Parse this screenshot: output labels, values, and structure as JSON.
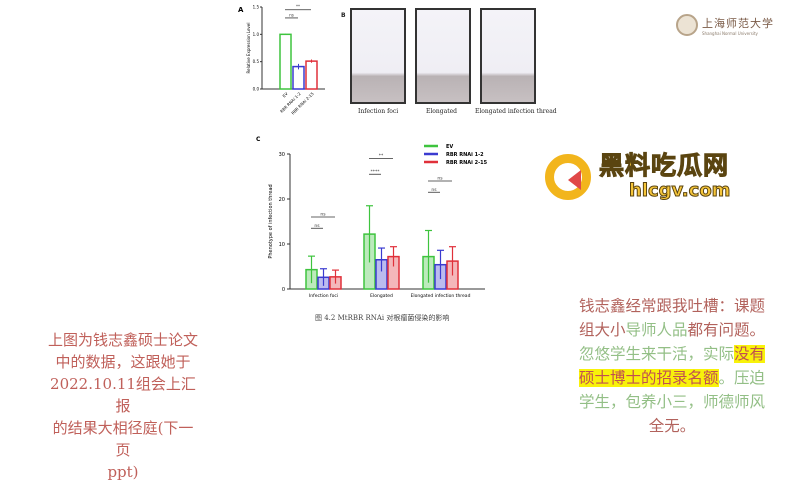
{
  "logo": {
    "name_cn": "上海师范大学",
    "name_en": "Shanghai Normal University"
  },
  "watermark": {
    "title": "黑料吃瓜网",
    "url": "hlcgv.com"
  },
  "panel_b": {
    "label": "B",
    "captions": [
      "Infection foci",
      "Elongated",
      "Elongated infection thread"
    ]
  },
  "caption": "图 4.2 MtRBR RNAi 对根瘤菌侵染的影响",
  "left_text": [
    "上图为钱志鑫硕士论文",
    "中的数据，这跟她于",
    "2022.10.11组会上汇报",
    "的结果大相径庭(下一页",
    "ppt)"
  ],
  "right_text": {
    "l1": "钱志鑫经常跟我吐槽：课题",
    "l2a": "组大小",
    "l2b": "导师人品",
    "l2c": "都有问题。",
    "l3a": "忽悠学生来干活，实际",
    "l3b": "没有",
    "l4a": "硕士博士的招录名额",
    "l4b": "。压迫",
    "l5": "学生，包养小三，师德师风",
    "l6": "全无。"
  },
  "chart_data": [
    {
      "panel": "A",
      "type": "bar",
      "ylabel": "Relative Expression Level",
      "ylim": [
        0,
        1.5
      ],
      "yticks": [
        "0.0",
        "0.5",
        "1.0",
        "1.5"
      ],
      "categories": [
        "EV",
        "RBR RNAi 1-2",
        "RBR RNAi 2-15"
      ],
      "values": [
        1.0,
        0.41,
        0.51
      ],
      "errors": [
        0.01,
        0.05,
        0.03
      ],
      "colors": [
        "#3ec43e",
        "#3b3bd0",
        "#e0303a"
      ],
      "significance": [
        {
          "label": "ns",
          "from": 0,
          "to": 1,
          "y": 1.3
        },
        {
          "label": "**",
          "from": 0,
          "to": 2,
          "y": 1.45
        }
      ]
    },
    {
      "panel": "C",
      "type": "bar",
      "ylabel": "Phenotype of infection thread",
      "ylim": [
        0,
        30
      ],
      "yticks": [
        "0",
        "10",
        "20",
        "30"
      ],
      "categories": [
        "Infection foci",
        "Elongated",
        "Elongated infection thread"
      ],
      "series": [
        {
          "name": "EV",
          "values": [
            4.3,
            12.2,
            7.2
          ],
          "errors": [
            3.0,
            6.3,
            5.8
          ],
          "color": "#3ec43e"
        },
        {
          "name": "RBR RNAi 1-2",
          "values": [
            2.6,
            6.5,
            5.4
          ],
          "errors": [
            1.9,
            2.6,
            3.2
          ],
          "color": "#3b3bd0"
        },
        {
          "name": "RBR RNAi 2-15",
          "values": [
            2.7,
            7.2,
            6.2
          ],
          "errors": [
            1.5,
            2.2,
            3.2
          ],
          "color": "#e0303a"
        }
      ],
      "legend": "top-right",
      "significance": [
        {
          "group": 0,
          "pairs": [
            {
              "label": "ns",
              "from": 0,
              "to": 1,
              "y": 13.5
            },
            {
              "label": "ns",
              "from": 0,
              "to": 2,
              "y": 16
            }
          ]
        },
        {
          "group": 1,
          "pairs": [
            {
              "label": "****",
              "from": 0,
              "to": 1,
              "y": 25.5
            },
            {
              "label": "**",
              "from": 0,
              "to": 2,
              "y": 29
            }
          ]
        },
        {
          "group": 2,
          "pairs": [
            {
              "label": "ns",
              "from": 0,
              "to": 1,
              "y": 21.5
            },
            {
              "label": "ns",
              "from": 0,
              "to": 2,
              "y": 24
            }
          ]
        }
      ]
    }
  ]
}
